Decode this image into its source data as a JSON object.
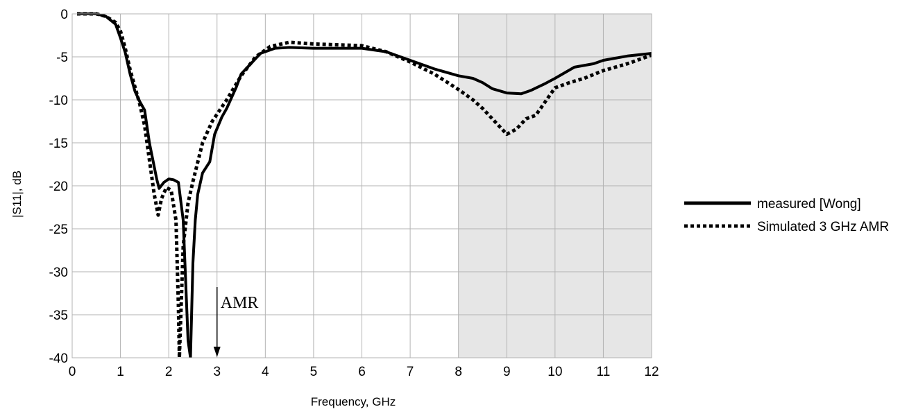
{
  "chart_data": {
    "type": "line",
    "xlabel": "Frequency, GHz",
    "ylabel": "|S11|, dB",
    "xlim": [
      0,
      12
    ],
    "ylim": [
      -40,
      0
    ],
    "xticks": [
      "0",
      "1",
      "2",
      "3",
      "4",
      "5",
      "6",
      "7",
      "8",
      "9",
      "10",
      "11",
      "12"
    ],
    "yticks": [
      "0",
      "-5",
      "-10",
      "-15",
      "-20",
      "-25",
      "-30",
      "-35",
      "-40"
    ],
    "grid": true,
    "legend_position": "right",
    "shaded_region": {
      "x_from": 8,
      "x_to": 12
    },
    "annotation": {
      "text": "AMR",
      "x": 3,
      "y_from": -32,
      "y_to": -40
    },
    "series": [
      {
        "name": "measured [Wong]",
        "style": "solid",
        "points": [
          [
            0.1,
            0
          ],
          [
            0.5,
            0
          ],
          [
            0.7,
            -0.3
          ],
          [
            0.9,
            -1.2
          ],
          [
            1.0,
            -2.8
          ],
          [
            1.1,
            -4.5
          ],
          [
            1.2,
            -7.0
          ],
          [
            1.3,
            -9.0
          ],
          [
            1.4,
            -10.2
          ],
          [
            1.5,
            -11.2
          ],
          [
            1.6,
            -15.0
          ],
          [
            1.7,
            -17.8
          ],
          [
            1.75,
            -19.2
          ],
          [
            1.8,
            -20.3
          ],
          [
            1.9,
            -19.6
          ],
          [
            2.0,
            -19.2
          ],
          [
            2.1,
            -19.3
          ],
          [
            2.2,
            -19.6
          ],
          [
            2.3,
            -24.0
          ],
          [
            2.4,
            -38.0
          ],
          [
            2.45,
            -40
          ],
          [
            2.5,
            -29.0
          ],
          [
            2.55,
            -24.0
          ],
          [
            2.6,
            -21.0
          ],
          [
            2.7,
            -18.5
          ],
          [
            2.85,
            -17.2
          ],
          [
            2.95,
            -14.0
          ],
          [
            3.1,
            -12.0
          ],
          [
            3.2,
            -11.0
          ],
          [
            3.4,
            -8.5
          ],
          [
            3.5,
            -7.0
          ],
          [
            3.7,
            -5.8
          ],
          [
            3.9,
            -4.6
          ],
          [
            4.2,
            -4.0
          ],
          [
            4.5,
            -3.9
          ],
          [
            5.0,
            -4.0
          ],
          [
            5.5,
            -4.0
          ],
          [
            6.0,
            -4.0
          ],
          [
            6.5,
            -4.4
          ],
          [
            7.0,
            -5.4
          ],
          [
            7.5,
            -6.4
          ],
          [
            8.0,
            -7.2
          ],
          [
            8.3,
            -7.5
          ],
          [
            8.5,
            -8.0
          ],
          [
            8.7,
            -8.7
          ],
          [
            9.0,
            -9.2
          ],
          [
            9.3,
            -9.3
          ],
          [
            9.5,
            -8.9
          ],
          [
            9.8,
            -8.1
          ],
          [
            10.0,
            -7.5
          ],
          [
            10.4,
            -6.2
          ],
          [
            10.8,
            -5.8
          ],
          [
            11.0,
            -5.4
          ],
          [
            11.5,
            -4.9
          ],
          [
            12.0,
            -4.6
          ]
        ]
      },
      {
        "name": "Simulated 3 GHz AMR",
        "style": "dotted",
        "points": [
          [
            0.1,
            0
          ],
          [
            0.5,
            0
          ],
          [
            0.7,
            -0.3
          ],
          [
            0.9,
            -1.0
          ],
          [
            1.0,
            -2.0
          ],
          [
            1.1,
            -4.0
          ],
          [
            1.2,
            -6.5
          ],
          [
            1.3,
            -8.5
          ],
          [
            1.4,
            -10.5
          ],
          [
            1.5,
            -13.0
          ],
          [
            1.6,
            -17.0
          ],
          [
            1.7,
            -21.0
          ],
          [
            1.78,
            -23.4
          ],
          [
            1.85,
            -21.5
          ],
          [
            1.95,
            -20.2
          ],
          [
            2.05,
            -20.5
          ],
          [
            2.15,
            -24.0
          ],
          [
            2.2,
            -34.0
          ],
          [
            2.22,
            -40
          ],
          [
            2.3,
            -27.0
          ],
          [
            2.4,
            -22.0
          ],
          [
            2.5,
            -19.5
          ],
          [
            2.7,
            -15.0
          ],
          [
            2.9,
            -12.5
          ],
          [
            3.2,
            -10.0
          ],
          [
            3.5,
            -7.2
          ],
          [
            3.8,
            -5.0
          ],
          [
            4.1,
            -3.8
          ],
          [
            4.5,
            -3.3
          ],
          [
            5.0,
            -3.5
          ],
          [
            5.5,
            -3.6
          ],
          [
            6.0,
            -3.7
          ],
          [
            6.5,
            -4.4
          ],
          [
            7.0,
            -5.6
          ],
          [
            7.5,
            -7.0
          ],
          [
            8.0,
            -8.8
          ],
          [
            8.3,
            -10.0
          ],
          [
            8.5,
            -11.0
          ],
          [
            8.8,
            -12.8
          ],
          [
            9.0,
            -14.0
          ],
          [
            9.2,
            -13.4
          ],
          [
            9.4,
            -12.2
          ],
          [
            9.6,
            -11.8
          ],
          [
            9.8,
            -10.2
          ],
          [
            10.0,
            -8.6
          ],
          [
            10.3,
            -8.0
          ],
          [
            10.6,
            -7.5
          ],
          [
            11.0,
            -6.6
          ],
          [
            11.5,
            -5.8
          ],
          [
            12.0,
            -4.8
          ]
        ]
      }
    ]
  }
}
